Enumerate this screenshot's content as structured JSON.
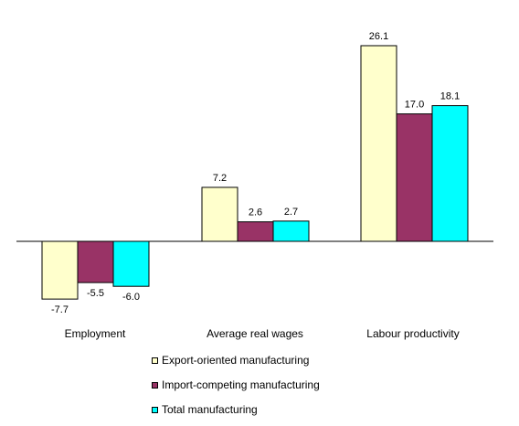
{
  "chart_data": {
    "type": "bar",
    "categories": [
      "Employment",
      "Average real wages",
      "Labour productivity"
    ],
    "series": [
      {
        "name": "Export-oriented manufacturing",
        "color": "#FFFFCC",
        "values": [
          -7.7,
          7.2,
          26.1
        ],
        "labels": [
          "-7.7",
          "7.2",
          "26.1"
        ]
      },
      {
        "name": "Import-competing manufacturing",
        "color": "#993366",
        "values": [
          -5.5,
          2.6,
          17.0
        ],
        "labels": [
          "-5.5",
          "2.6",
          "17.0"
        ]
      },
      {
        "name": "Total manufacturing",
        "color": "#00FFFF",
        "values": [
          -6.0,
          2.7,
          18.1
        ],
        "labels": [
          "-6.0",
          "2.7",
          "18.1"
        ]
      }
    ],
    "title": "",
    "xlabel": "",
    "ylabel": "",
    "ylim": [
      -10,
      30
    ],
    "grid": false,
    "legend_position": "bottom"
  }
}
